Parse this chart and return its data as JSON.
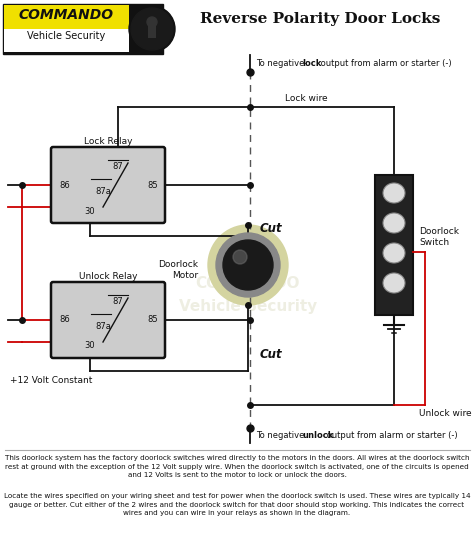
{
  "title": "Reverse Polarity Door Locks",
  "bg_color": "#ffffff",
  "title_fontsize": 11,
  "relay_fill": "#cccccc",
  "relay_stroke": "#111111",
  "wire_black": "#111111",
  "wire_red": "#cc0000",
  "dot_color": "#111111",
  "cut_label": "Cut",
  "lock_relay_label": "Lock Relay",
  "unlock_relay_label": "Unlock Relay",
  "motor_label": "Doorlock\nMotor",
  "switch_label": "Doorlock\nSwitch",
  "lock_wire_label": "Lock wire",
  "unlock_wire_label": "Unlock wire",
  "v12_label": "+12 Volt Constant",
  "para1": "This doorlock system has the factory doorlock switches wired directly to the motors in the doors. All wires at the doorlock switch\nrest at ground with the exception of the 12 Volt supply wire. When the doorlock switch is activated, one of the circuits is opened\nand 12 Volts is sent to the motor to lock or unlock the doors.",
  "para2": "Locate the wires specified on your wiring sheet and test for power when the doorlock switch is used. These wires are typically 14\ngauge or better. Cut either of the 2 wires and the doorlock switch for that door should stop working. This indicates the correct\nwires and you can wire in your relays as shown in the diagram.",
  "relay_pins": [
    "87",
    "86",
    "87a",
    "85",
    "30"
  ],
  "watermark_line1": "COMMANDO",
  "watermark_line2": "Vehicle Security"
}
